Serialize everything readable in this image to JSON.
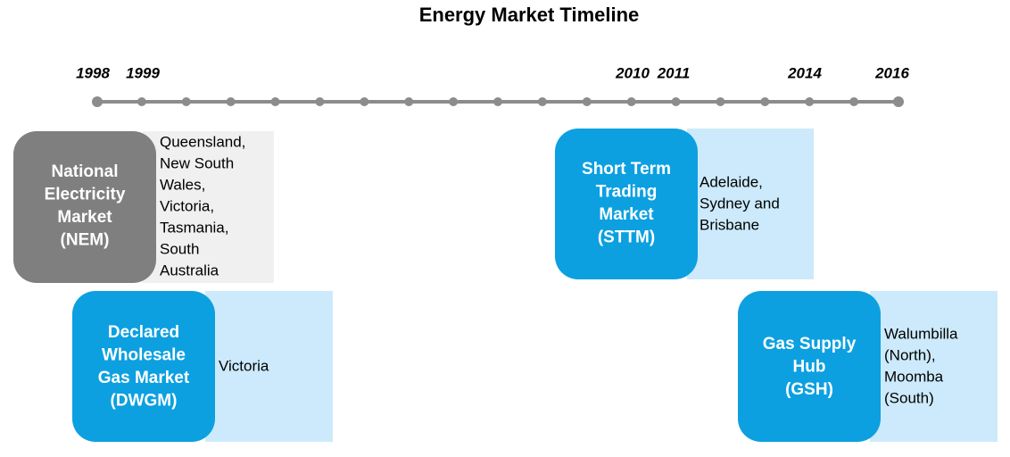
{
  "title": "Energy Market Timeline",
  "years": [
    "1998",
    "1999",
    "2010",
    "2011",
    "2014",
    "2016"
  ],
  "markets": [
    {
      "name": [
        "National",
        "Electricity",
        "Market",
        "(NEM)"
      ],
      "regions": [
        "Queensland,",
        "New South",
        "Wales,",
        "Victoria,",
        "Tasmania,",
        "South",
        "Australia"
      ]
    },
    {
      "name": [
        "Declared",
        "Wholesale",
        "Gas Market",
        "(DWGM)"
      ],
      "regions": [
        "Victoria"
      ]
    },
    {
      "name": [
        "Short Term",
        "Trading",
        "Market",
        "(STTM)"
      ],
      "regions": [
        "Adelaide,",
        "Sydney and",
        "Brisbane"
      ]
    },
    {
      "name": [
        "Gas Supply",
        "Hub",
        "(GSH)"
      ],
      "regions": [
        "Walumbilla",
        "(North),",
        "Moomba",
        "(South)"
      ]
    }
  ]
}
